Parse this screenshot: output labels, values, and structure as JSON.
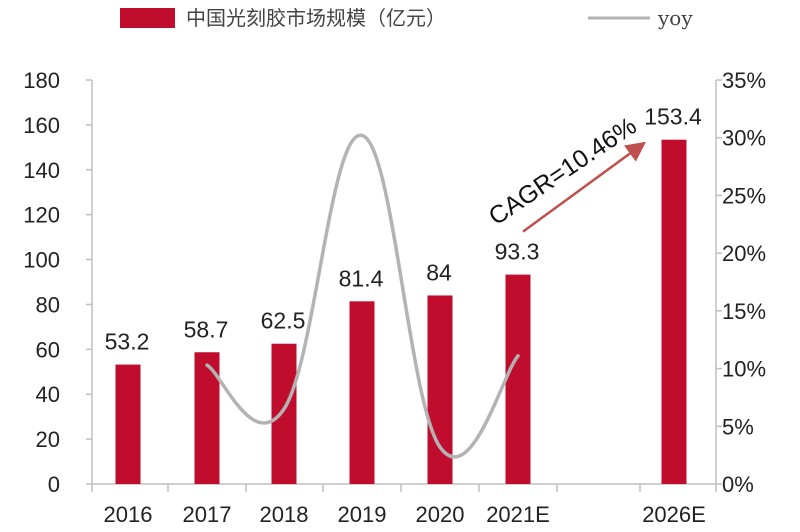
{
  "chart_data": {
    "type": "bar",
    "categories": [
      "2016",
      "2017",
      "2018",
      "2019",
      "2020",
      "2021E",
      "2026E"
    ],
    "series": [
      {
        "name": "中国光刻胶市场规模（亿元）",
        "type": "bar",
        "axis": "left",
        "color": "#c00d2e",
        "values": [
          53.2,
          58.7,
          62.5,
          81.4,
          84,
          93.3,
          153.4
        ],
        "labels": [
          "53.2",
          "58.7",
          "62.5",
          "81.4",
          "84",
          "93.3",
          "153.4"
        ]
      },
      {
        "name": "yoy",
        "type": "line",
        "axis": "right",
        "color": "#b3b3b3",
        "values": [
          null,
          10.3,
          6.5,
          30.2,
          3.2,
          11.1,
          null
        ]
      }
    ],
    "y_left": {
      "min": 0,
      "max": 180,
      "step": 20,
      "ticks": [
        "0",
        "20",
        "40",
        "60",
        "80",
        "100",
        "120",
        "140",
        "160",
        "180"
      ]
    },
    "y_right": {
      "min": 0,
      "max": 35,
      "step": 5,
      "ticks": [
        "0%",
        "5%",
        "10%",
        "15%",
        "20%",
        "25%",
        "30%",
        "35%"
      ]
    },
    "annotation": {
      "text": "CAGR=10.46%",
      "from": "2021E",
      "to": "2026E"
    },
    "legend_position": "top",
    "grid": false
  }
}
